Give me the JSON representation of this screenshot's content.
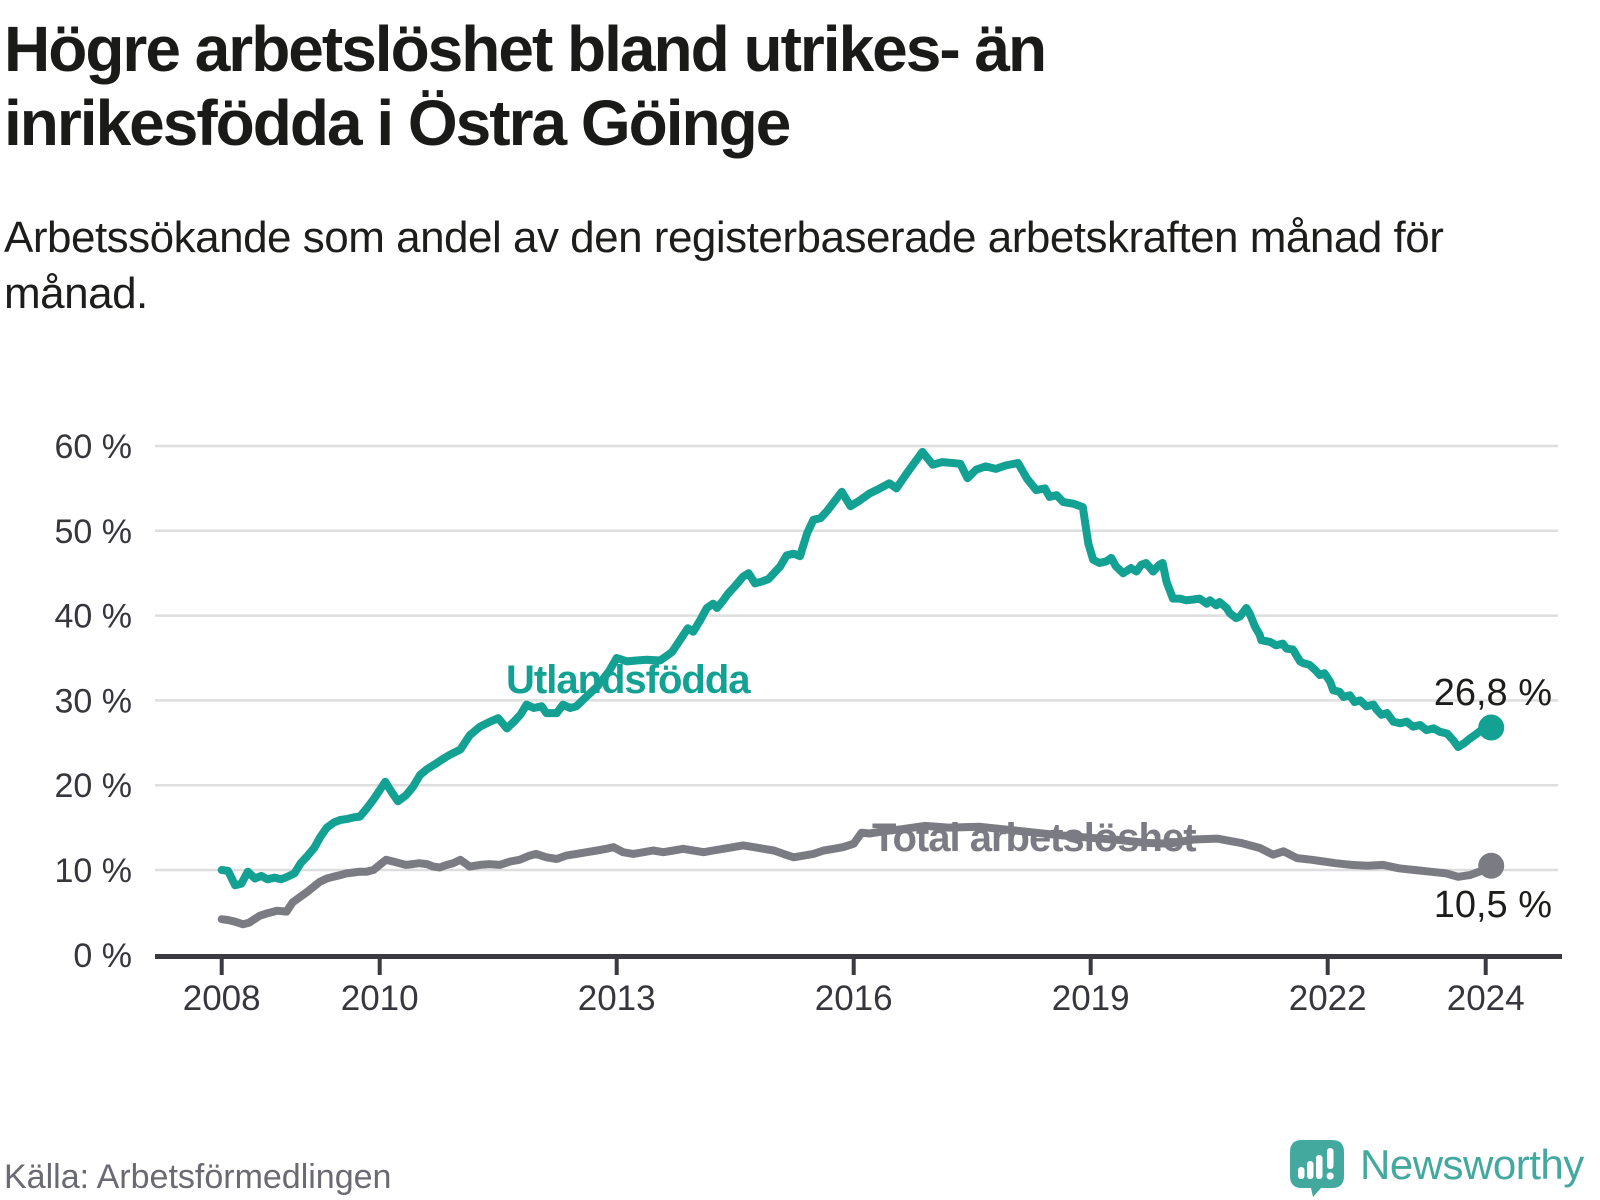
{
  "header": {
    "title": "Högre arbetslöshet bland utrikes- än inrikesfödda i Östra Göinge",
    "subtitle": "Arbetssökande som andel av den registerbaserade arbetskraften månad för månad."
  },
  "footer": {
    "source": "Källa: Arbetsförmedlingen",
    "brand": "Newsworthy"
  },
  "colors": {
    "teal_line": "#12a192",
    "gray_line": "#7b7b83",
    "title_text": "#1a1a18",
    "axis_text": "#36363c",
    "axis_line": "#3a3a40",
    "gridline": "#dedede",
    "source_text": "#6a6a72",
    "logo_teal": "#43a99f",
    "background": "#ffffff"
  },
  "chart_data": {
    "type": "line",
    "title": "Högre arbetslöshet bland utrikes- än inrikesfödda i Östra Göinge",
    "subtitle": "Arbetssökande som andel av den registerbaserade arbetskraften månad för månad.",
    "xlabel": "",
    "ylabel": "",
    "xlim": [
      2007.15,
      2024.97
    ],
    "ylim": [
      0,
      60
    ],
    "grid": "horizontal",
    "legend_position": "inline-labels",
    "x_ticks": [
      2008,
      2010,
      2013,
      2016,
      2019,
      2022,
      2024
    ],
    "y_ticks": [
      0,
      10,
      20,
      30,
      40,
      50,
      60
    ],
    "y_tick_suffix": " %",
    "series": [
      {
        "name": "Utlandsfödda",
        "color": "#12a192",
        "end_label": "26,8 %",
        "end_value": 26.8,
        "points": [
          [
            2008.0,
            10.0
          ],
          [
            2008.08,
            9.9
          ],
          [
            2008.17,
            8.2
          ],
          [
            2008.25,
            8.4
          ],
          [
            2008.33,
            9.8
          ],
          [
            2008.42,
            9.0
          ],
          [
            2008.5,
            9.3
          ],
          [
            2008.58,
            8.9
          ],
          [
            2008.67,
            9.1
          ],
          [
            2008.75,
            8.9
          ],
          [
            2008.83,
            9.2
          ],
          [
            2008.92,
            9.6
          ],
          [
            2009.0,
            10.8
          ],
          [
            2009.08,
            11.6
          ],
          [
            2009.17,
            12.6
          ],
          [
            2009.25,
            13.9
          ],
          [
            2009.33,
            15.0
          ],
          [
            2009.42,
            15.6
          ],
          [
            2009.5,
            15.9
          ],
          [
            2009.58,
            16.0
          ],
          [
            2009.67,
            16.2
          ],
          [
            2009.75,
            16.3
          ],
          [
            2009.83,
            17.2
          ],
          [
            2009.92,
            18.3
          ],
          [
            2010.0,
            19.4
          ],
          [
            2010.07,
            20.4
          ],
          [
            2010.15,
            19.2
          ],
          [
            2010.23,
            18.1
          ],
          [
            2010.33,
            18.8
          ],
          [
            2010.42,
            19.8
          ],
          [
            2010.51,
            21.2
          ],
          [
            2010.6,
            21.9
          ],
          [
            2010.72,
            22.6
          ],
          [
            2010.8,
            23.1
          ],
          [
            2010.89,
            23.6
          ],
          [
            2011.02,
            24.2
          ],
          [
            2011.14,
            25.9
          ],
          [
            2011.27,
            26.9
          ],
          [
            2011.4,
            27.5
          ],
          [
            2011.5,
            27.9
          ],
          [
            2011.61,
            26.7
          ],
          [
            2011.7,
            27.5
          ],
          [
            2011.78,
            28.3
          ],
          [
            2011.86,
            29.5
          ],
          [
            2011.95,
            29.1
          ],
          [
            2012.05,
            29.3
          ],
          [
            2012.11,
            28.5
          ],
          [
            2012.24,
            28.5
          ],
          [
            2012.32,
            29.5
          ],
          [
            2012.41,
            29.1
          ],
          [
            2012.49,
            29.3
          ],
          [
            2012.6,
            30.3
          ],
          [
            2012.75,
            31.6
          ],
          [
            2012.9,
            33.4
          ],
          [
            2013.0,
            35.0
          ],
          [
            2013.13,
            34.6
          ],
          [
            2013.25,
            34.7
          ],
          [
            2013.38,
            34.8
          ],
          [
            2013.55,
            34.7
          ],
          [
            2013.7,
            35.7
          ],
          [
            2013.8,
            37.1
          ],
          [
            2013.9,
            38.5
          ],
          [
            2013.97,
            38.1
          ],
          [
            2014.06,
            39.5
          ],
          [
            2014.14,
            40.9
          ],
          [
            2014.22,
            41.4
          ],
          [
            2014.27,
            40.9
          ],
          [
            2014.35,
            41.8
          ],
          [
            2014.41,
            42.6
          ],
          [
            2014.5,
            43.5
          ],
          [
            2014.6,
            44.6
          ],
          [
            2014.67,
            45.0
          ],
          [
            2014.75,
            43.8
          ],
          [
            2014.83,
            44.0
          ],
          [
            2014.92,
            44.3
          ],
          [
            2015.07,
            45.8
          ],
          [
            2015.15,
            47.1
          ],
          [
            2015.24,
            47.3
          ],
          [
            2015.32,
            47.0
          ],
          [
            2015.41,
            49.7
          ],
          [
            2015.49,
            51.3
          ],
          [
            2015.58,
            51.5
          ],
          [
            2015.66,
            52.3
          ],
          [
            2015.75,
            53.4
          ],
          [
            2015.85,
            54.6
          ],
          [
            2015.96,
            52.9
          ],
          [
            2016.08,
            53.6
          ],
          [
            2016.2,
            54.4
          ],
          [
            2016.33,
            55.0
          ],
          [
            2016.45,
            55.6
          ],
          [
            2016.54,
            55.0
          ],
          [
            2016.65,
            56.5
          ],
          [
            2016.75,
            57.8
          ],
          [
            2016.87,
            59.3
          ],
          [
            2017.0,
            57.8
          ],
          [
            2017.12,
            58.1
          ],
          [
            2017.25,
            58.0
          ],
          [
            2017.35,
            57.9
          ],
          [
            2017.44,
            56.2
          ],
          [
            2017.55,
            57.2
          ],
          [
            2017.67,
            57.6
          ],
          [
            2017.8,
            57.3
          ],
          [
            2017.92,
            57.7
          ],
          [
            2018.08,
            58.0
          ],
          [
            2018.19,
            56.2
          ],
          [
            2018.31,
            54.8
          ],
          [
            2018.42,
            55.0
          ],
          [
            2018.48,
            54.0
          ],
          [
            2018.57,
            54.2
          ],
          [
            2018.65,
            53.4
          ],
          [
            2018.78,
            53.2
          ],
          [
            2018.9,
            52.8
          ],
          [
            2018.97,
            48.5
          ],
          [
            2019.03,
            46.6
          ],
          [
            2019.11,
            46.2
          ],
          [
            2019.2,
            46.4
          ],
          [
            2019.26,
            46.8
          ],
          [
            2019.32,
            45.8
          ],
          [
            2019.41,
            45.0
          ],
          [
            2019.51,
            45.6
          ],
          [
            2019.58,
            45.2
          ],
          [
            2019.64,
            46.0
          ],
          [
            2019.7,
            46.2
          ],
          [
            2019.79,
            45.2
          ],
          [
            2019.87,
            46.0
          ],
          [
            2019.91,
            46.2
          ],
          [
            2019.96,
            44.0
          ],
          [
            2020.04,
            42.0
          ],
          [
            2020.13,
            42.0
          ],
          [
            2020.21,
            41.8
          ],
          [
            2020.3,
            41.9
          ],
          [
            2020.38,
            42.0
          ],
          [
            2020.47,
            41.4
          ],
          [
            2020.51,
            41.8
          ],
          [
            2020.59,
            41.2
          ],
          [
            2020.63,
            41.6
          ],
          [
            2020.72,
            40.9
          ],
          [
            2020.76,
            40.3
          ],
          [
            2020.84,
            39.7
          ],
          [
            2020.89,
            39.9
          ],
          [
            2020.97,
            40.9
          ],
          [
            2021.01,
            40.3
          ],
          [
            2021.08,
            38.7
          ],
          [
            2021.14,
            37.7
          ],
          [
            2021.16,
            37.1
          ],
          [
            2021.27,
            36.9
          ],
          [
            2021.35,
            36.5
          ],
          [
            2021.43,
            36.7
          ],
          [
            2021.48,
            36.1
          ],
          [
            2021.56,
            36.0
          ],
          [
            2021.65,
            34.6
          ],
          [
            2021.69,
            34.4
          ],
          [
            2021.77,
            34.2
          ],
          [
            2021.84,
            33.6
          ],
          [
            2021.9,
            33.0
          ],
          [
            2021.96,
            33.2
          ],
          [
            2022.03,
            32.2
          ],
          [
            2022.07,
            31.2
          ],
          [
            2022.15,
            31.0
          ],
          [
            2022.2,
            30.4
          ],
          [
            2022.28,
            30.6
          ],
          [
            2022.34,
            29.8
          ],
          [
            2022.41,
            30.0
          ],
          [
            2022.49,
            29.3
          ],
          [
            2022.58,
            29.5
          ],
          [
            2022.62,
            28.9
          ],
          [
            2022.68,
            28.3
          ],
          [
            2022.75,
            28.5
          ],
          [
            2022.83,
            27.5
          ],
          [
            2022.92,
            27.3
          ],
          [
            2023.0,
            27.5
          ],
          [
            2023.08,
            26.9
          ],
          [
            2023.17,
            27.1
          ],
          [
            2023.25,
            26.5
          ],
          [
            2023.34,
            26.7
          ],
          [
            2023.42,
            26.3
          ],
          [
            2023.51,
            26.1
          ],
          [
            2023.59,
            25.3
          ],
          [
            2023.65,
            24.5
          ],
          [
            2023.72,
            24.9
          ],
          [
            2023.8,
            25.5
          ],
          [
            2023.89,
            26.1
          ],
          [
            2023.97,
            26.7
          ],
          [
            2024.07,
            26.8
          ]
        ]
      },
      {
        "name": "Total arbetslöshet",
        "color": "#7b7b83",
        "end_label": "10,5 %",
        "end_value": 10.5,
        "points": [
          [
            2008.0,
            4.2
          ],
          [
            2008.08,
            4.1
          ],
          [
            2008.17,
            3.9
          ],
          [
            2008.27,
            3.6
          ],
          [
            2008.35,
            3.8
          ],
          [
            2008.48,
            4.6
          ],
          [
            2008.58,
            4.9
          ],
          [
            2008.7,
            5.2
          ],
          [
            2008.82,
            5.1
          ],
          [
            2008.9,
            6.2
          ],
          [
            2008.99,
            6.8
          ],
          [
            2009.08,
            7.4
          ],
          [
            2009.16,
            8.0
          ],
          [
            2009.24,
            8.6
          ],
          [
            2009.33,
            9.0
          ],
          [
            2009.41,
            9.2
          ],
          [
            2009.5,
            9.4
          ],
          [
            2009.58,
            9.6
          ],
          [
            2009.67,
            9.7
          ],
          [
            2009.75,
            9.8
          ],
          [
            2009.83,
            9.8
          ],
          [
            2009.92,
            10.0
          ],
          [
            2010.0,
            10.6
          ],
          [
            2010.08,
            11.2
          ],
          [
            2010.17,
            11.0
          ],
          [
            2010.25,
            10.8
          ],
          [
            2010.33,
            10.6
          ],
          [
            2010.42,
            10.7
          ],
          [
            2010.5,
            10.8
          ],
          [
            2010.6,
            10.7
          ],
          [
            2010.68,
            10.4
          ],
          [
            2010.76,
            10.3
          ],
          [
            2010.85,
            10.6
          ],
          [
            2010.93,
            10.8
          ],
          [
            2011.02,
            11.2
          ],
          [
            2011.14,
            10.4
          ],
          [
            2011.27,
            10.6
          ],
          [
            2011.39,
            10.7
          ],
          [
            2011.52,
            10.6
          ],
          [
            2011.65,
            11.0
          ],
          [
            2011.77,
            11.2
          ],
          [
            2011.9,
            11.7
          ],
          [
            2011.98,
            11.9
          ],
          [
            2012.11,
            11.5
          ],
          [
            2012.24,
            11.3
          ],
          [
            2012.36,
            11.7
          ],
          [
            2012.49,
            11.9
          ],
          [
            2012.62,
            12.1
          ],
          [
            2012.75,
            12.3
          ],
          [
            2012.87,
            12.5
          ],
          [
            2012.96,
            12.7
          ],
          [
            2013.08,
            12.1
          ],
          [
            2013.21,
            11.9
          ],
          [
            2013.34,
            12.1
          ],
          [
            2013.46,
            12.3
          ],
          [
            2013.59,
            12.1
          ],
          [
            2013.72,
            12.3
          ],
          [
            2013.84,
            12.5
          ],
          [
            2013.97,
            12.3
          ],
          [
            2014.1,
            12.1
          ],
          [
            2014.22,
            12.3
          ],
          [
            2014.35,
            12.5
          ],
          [
            2014.48,
            12.7
          ],
          [
            2014.6,
            12.9
          ],
          [
            2014.73,
            12.7
          ],
          [
            2014.86,
            12.5
          ],
          [
            2014.99,
            12.3
          ],
          [
            2015.11,
            11.9
          ],
          [
            2015.24,
            11.5
          ],
          [
            2015.37,
            11.7
          ],
          [
            2015.49,
            11.9
          ],
          [
            2015.62,
            12.3
          ],
          [
            2015.75,
            12.5
          ],
          [
            2015.87,
            12.7
          ],
          [
            2016.0,
            13.1
          ],
          [
            2016.1,
            14.4
          ],
          [
            2016.2,
            14.3
          ],
          [
            2016.4,
            14.6
          ],
          [
            2016.6,
            14.8
          ],
          [
            2016.9,
            15.2
          ],
          [
            2017.2,
            15.0
          ],
          [
            2017.6,
            15.1
          ],
          [
            2017.9,
            14.8
          ],
          [
            2018.2,
            14.5
          ],
          [
            2018.6,
            14.1
          ],
          [
            2019.0,
            13.8
          ],
          [
            2019.4,
            13.5
          ],
          [
            2019.7,
            13.2
          ],
          [
            2020.0,
            13.1
          ],
          [
            2020.3,
            13.6
          ],
          [
            2020.6,
            13.7
          ],
          [
            2020.9,
            13.2
          ],
          [
            2021.14,
            12.6
          ],
          [
            2021.31,
            11.8
          ],
          [
            2021.44,
            12.2
          ],
          [
            2021.61,
            11.4
          ],
          [
            2021.8,
            11.2
          ],
          [
            2021.95,
            11.0
          ],
          [
            2022.1,
            10.8
          ],
          [
            2022.3,
            10.6
          ],
          [
            2022.5,
            10.5
          ],
          [
            2022.7,
            10.6
          ],
          [
            2022.9,
            10.2
          ],
          [
            2023.1,
            10.0
          ],
          [
            2023.3,
            9.8
          ],
          [
            2023.5,
            9.6
          ],
          [
            2023.65,
            9.2
          ],
          [
            2023.8,
            9.4
          ],
          [
            2023.95,
            9.9
          ],
          [
            2024.07,
            10.5
          ]
        ]
      }
    ]
  }
}
